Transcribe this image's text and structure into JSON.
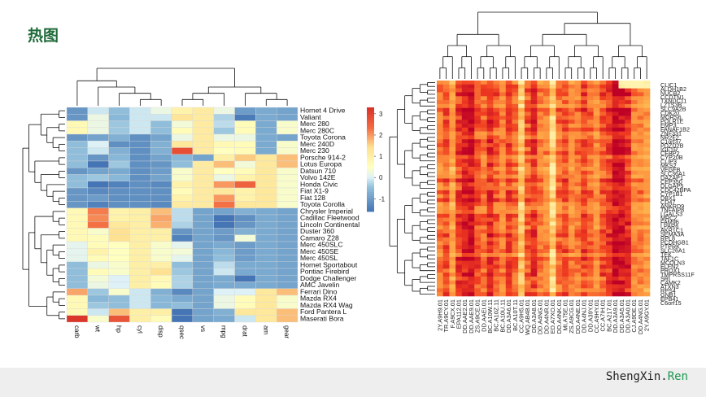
{
  "page": {
    "title": "热图",
    "brand": {
      "main": "ShengXin.",
      "accent": "Ren"
    },
    "colors": {
      "accent": "#1a9850",
      "title": "#1f6b3a",
      "footer_bg": "#eeeeee"
    }
  },
  "chart_data": [
    {
      "type": "heatmap",
      "title": "",
      "rows": [
        "Hornet 4 Drive",
        "Valiant",
        "Merc 280",
        "Merc 280C",
        "Toyota Corona",
        "Merc 240D",
        "Merc 230",
        "Porsche 914-2",
        "Lotus Europa",
        "Datsun 710",
        "Volvo 142E",
        "Honda Civic",
        "Fiat X1-9",
        "Fiat 128",
        "Toyota Corolla",
        "Chrysler Imperial",
        "Cadillac Fleetwood",
        "Lincoln Continental",
        "Duster 360",
        "Camaro Z28",
        "Merc 450SLC",
        "Merc 450SE",
        "Merc 450SL",
        "Hornet Sportabout",
        "Pontiac Firebird",
        "Dodge Challenger",
        "AMC Javelin",
        "Ferrari Dino",
        "Mazda RX4",
        "Mazda RX4 Wag",
        "Ford Pantera L",
        "Maserati Bora"
      ],
      "columns": [
        "carb",
        "wt",
        "hp",
        "cyl",
        "disp",
        "qsec",
        "vs",
        "mpg",
        "drat",
        "am",
        "gear"
      ],
      "values": [
        [
          -1.1,
          -0.1,
          -0.5,
          -0.1,
          0.2,
          0.9,
          1.1,
          0.2,
          -1.0,
          -0.8,
          -0.9
        ],
        [
          -1.1,
          0.2,
          -0.6,
          -0.1,
          -0.1,
          1.3,
          1.1,
          -0.3,
          -1.5,
          -0.8,
          -0.9
        ],
        [
          0.7,
          0.2,
          -0.4,
          -0.1,
          -0.5,
          0.3,
          1.1,
          -0.2,
          0.6,
          -0.8,
          0.4
        ],
        [
          0.7,
          0.2,
          -0.4,
          -0.1,
          -0.5,
          0.6,
          1.1,
          -0.4,
          0.6,
          -0.8,
          0.4
        ],
        [
          -1.1,
          -0.9,
          -0.7,
          -1.2,
          -0.9,
          0.2,
          1.1,
          0.2,
          0.2,
          -0.8,
          -0.9
        ],
        [
          -0.5,
          0.0,
          -1.2,
          -1.2,
          -0.7,
          1.2,
          1.1,
          0.7,
          0.6,
          -0.8,
          0.4
        ],
        [
          -0.5,
          -0.1,
          -0.7,
          -1.2,
          -0.7,
          2.8,
          1.1,
          0.5,
          0.6,
          -0.8,
          0.4
        ],
        [
          -0.5,
          -1.1,
          -0.6,
          -1.2,
          -0.9,
          -0.6,
          -0.9,
          1.0,
          1.6,
          1.2,
          1.7
        ],
        [
          -0.5,
          -1.7,
          -0.4,
          -1.2,
          -1.1,
          -0.5,
          1.1,
          1.7,
          0.3,
          1.2,
          1.7
        ],
        [
          -1.1,
          -0.9,
          -0.8,
          -1.2,
          -1.0,
          0.4,
          1.1,
          0.5,
          0.6,
          1.2,
          0.4
        ],
        [
          -0.5,
          -0.4,
          -0.6,
          -1.2,
          -0.9,
          0.4,
          1.1,
          0.2,
          0.9,
          1.2,
          0.4
        ],
        [
          -0.5,
          -1.6,
          -1.4,
          -1.2,
          -1.3,
          0.9,
          1.1,
          2.0,
          2.5,
          1.2,
          0.4
        ],
        [
          -1.1,
          -1.3,
          -1.2,
          -1.2,
          -1.2,
          0.6,
          1.1,
          1.2,
          0.9,
          1.2,
          0.4
        ],
        [
          -1.1,
          -1.0,
          -1.2,
          -1.2,
          -1.2,
          0.9,
          1.1,
          2.0,
          0.9,
          1.2,
          0.4
        ],
        [
          -1.1,
          -1.4,
          -1.2,
          -1.2,
          -1.3,
          1.1,
          1.1,
          2.3,
          1.2,
          1.2,
          0.4
        ],
        [
          0.7,
          2.2,
          0.9,
          1.0,
          1.7,
          -0.2,
          -0.9,
          -0.9,
          -0.7,
          -0.8,
          -0.9
        ],
        [
          0.7,
          2.1,
          0.9,
          1.0,
          1.9,
          -0.2,
          -0.9,
          -1.6,
          -1.2,
          -0.8,
          -0.9
        ],
        [
          0.7,
          2.3,
          1.2,
          1.0,
          1.8,
          -0.3,
          -0.9,
          -1.6,
          -1.1,
          -0.8,
          -0.9
        ],
        [
          0.7,
          0.4,
          1.4,
          1.0,
          1.0,
          -1.1,
          -0.9,
          -1.0,
          -0.7,
          -0.8,
          -0.9
        ],
        [
          0.7,
          0.6,
          1.4,
          1.0,
          1.0,
          -1.4,
          -0.9,
          -1.1,
          0.3,
          -0.8,
          -0.9
        ],
        [
          0.1,
          0.6,
          0.5,
          1.0,
          0.4,
          0.1,
          -0.9,
          -0.8,
          -1.0,
          -0.8,
          -0.9
        ],
        [
          0.1,
          0.9,
          0.5,
          1.0,
          0.4,
          0.3,
          -0.9,
          -0.6,
          -1.0,
          -0.8,
          -0.9
        ],
        [
          0.1,
          0.6,
          0.5,
          1.0,
          0.4,
          0.1,
          -0.9,
          -0.5,
          -1.0,
          -0.8,
          -0.9
        ],
        [
          -0.5,
          0.2,
          0.4,
          1.0,
          1.0,
          -0.5,
          -0.9,
          -0.2,
          -0.8,
          -0.8,
          -0.9
        ],
        [
          -0.5,
          0.6,
          0.4,
          1.0,
          1.4,
          -0.4,
          -0.9,
          -0.1,
          -0.8,
          -0.8,
          -0.9
        ],
        [
          -0.5,
          0.3,
          0.0,
          1.0,
          0.7,
          -0.3,
          -0.9,
          -0.8,
          -1.6,
          -0.8,
          -0.9
        ],
        [
          -0.5,
          0.2,
          0.0,
          1.0,
          0.6,
          -0.3,
          -0.9,
          -0.8,
          -0.8,
          -0.8,
          -0.9
        ],
        [
          1.9,
          -0.4,
          0.4,
          -0.1,
          -0.7,
          -1.3,
          -0.9,
          0.0,
          0.0,
          1.2,
          1.7
        ],
        [
          0.7,
          -0.6,
          -0.5,
          -0.1,
          -0.6,
          -0.8,
          -0.9,
          0.2,
          0.6,
          1.2,
          0.4
        ],
        [
          0.7,
          -0.4,
          -0.5,
          -0.1,
          -0.6,
          -0.5,
          -0.9,
          0.2,
          0.6,
          1.2,
          0.4
        ],
        [
          0.7,
          -0.1,
          1.7,
          1.0,
          1.0,
          -1.9,
          -0.9,
          -0.7,
          1.2,
          1.2,
          1.7
        ],
        [
          3.2,
          0.4,
          2.7,
          1.0,
          0.6,
          -1.8,
          -0.9,
          -0.8,
          -0.1,
          1.2,
          1.7
        ]
      ],
      "legend": {
        "ticks": [
          3,
          2,
          1,
          0,
          -1
        ],
        "range": [
          -1.6,
          3.3
        ],
        "position": "right"
      },
      "xlabel": "",
      "ylabel": ""
    },
    {
      "type": "heatmap",
      "title": "",
      "rows": [
        "CLIC1",
        "ALDH1B2",
        "NUCB2",
        "CCDTN1",
        "TXNDC11",
        "LZTS3B",
        "SLC9A2B",
        "CDK20",
        "MORS6",
        "POLR1E",
        "EMP3",
        "FANAF1B2",
        "ZNF331",
        "NR2F2",
        "C1orf37",
        "PDZD2B",
        "IGF1R",
        "CEBP2",
        "CYP20B",
        "CLIP3",
        "MKS2",
        "VEGFB",
        "SLC36A1",
        "DAZAP1",
        "CEP350",
        "DLGAP5",
        "CDC42BPA",
        "CYP1B1",
        "DBX1",
        "CD47",
        "ANKRD9",
        "TNFAIP8",
        "LGALS3",
        "MRC2",
        "FAM96",
        "LPAR6",
        "AKR1C1",
        "SEMA3A",
        "RPL8",
        "PCDHGB1",
        "PTPRK",
        "SLC26A1",
        "TEK",
        "TAF1C",
        "MCOLN3",
        "ELFN2",
        "PROX1",
        "TMPRSS11F",
        "SRI",
        "CAMK2",
        "ATXN3",
        "RPS4",
        "GNB1",
        "EPB41",
        "C6orf15"
      ],
      "columns": [
        "2Y.A9H9.01",
        "TR.A9CY.01",
        "F.A9CX.01",
        "EPA112.01",
        "DD.AAE2.01",
        "DD.AAE9.01",
        "ZS.A9CE.01",
        "DD.AAEI.01",
        "BC.A10W.11",
        "BC.A10Z.11",
        "BC.A10U.11",
        "DD.A3A6.01",
        "BC.A10T.11",
        "CC.A9H5.01",
        "WQ.AB4B.01",
        "DD.A3A8.01",
        "DD.A4NG.01",
        "DD.A4NR.01",
        "ED.A7XO.01",
        "DD.A4NK.01",
        "MI.A75E.01",
        "ZS.A9CG.01",
        "DD.A4NE.01",
        "DD.A4NJ.01",
        "DD.A39Y.01",
        "CC.A9HY.01",
        "CC.A7IH.01",
        "BC.A217.01",
        "DD.A3A9.01",
        "DD.A3A5.01",
        "DD.A3A0.01",
        "CJ.A9DE.01",
        "DD.A4NG.01",
        "2Y.A9GY.01"
      ]
    }
  ]
}
